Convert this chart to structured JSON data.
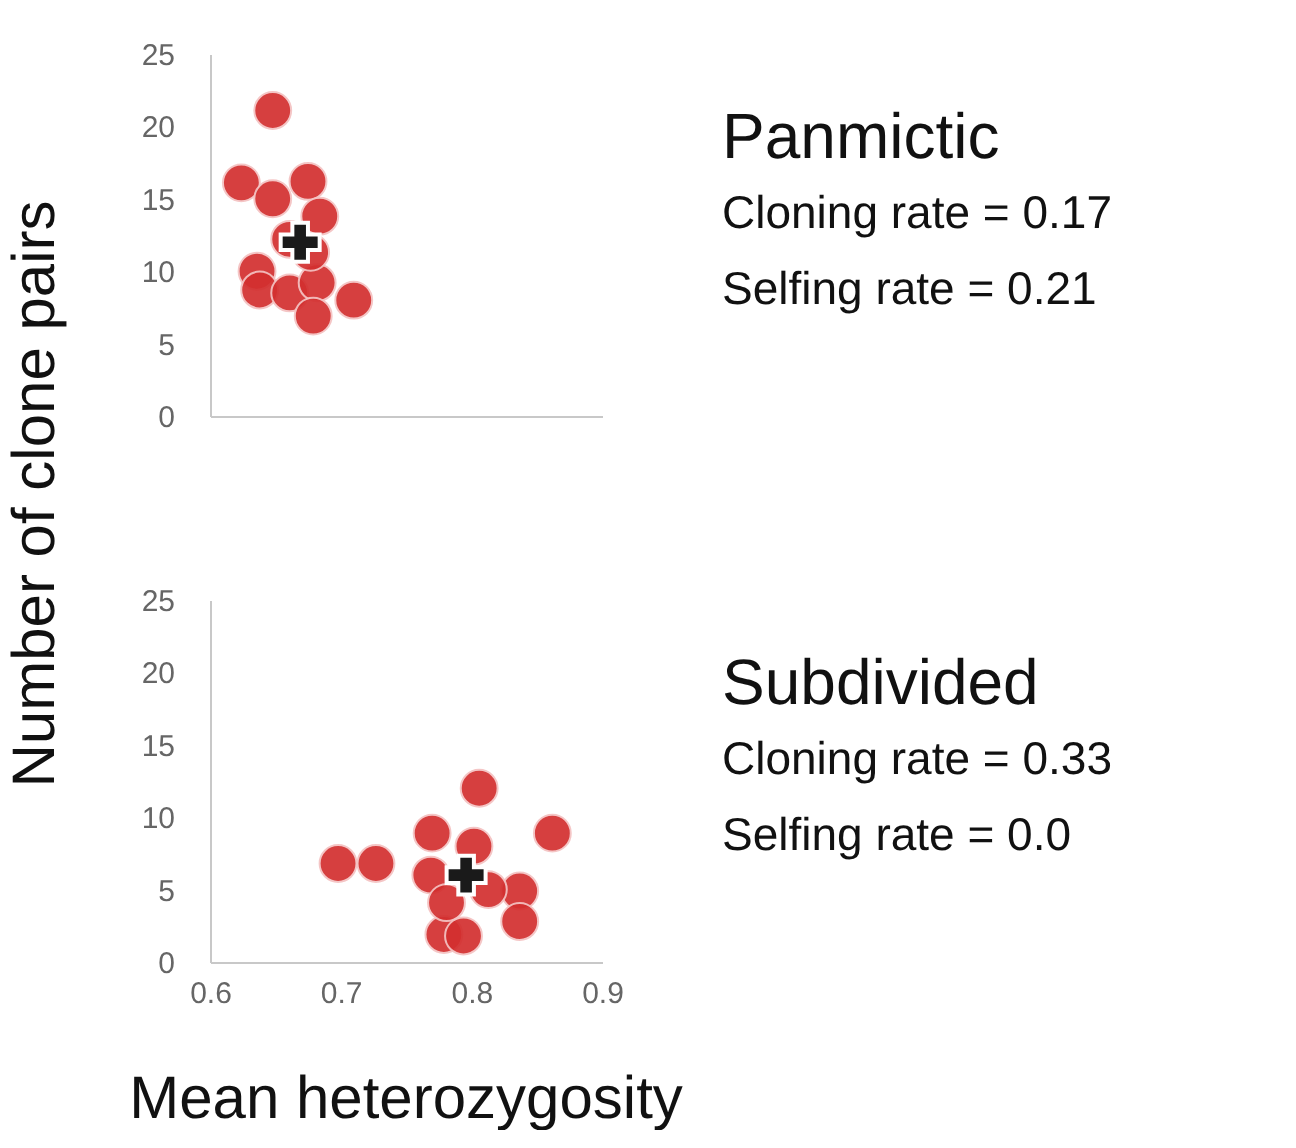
{
  "chart_data": [
    {
      "type": "scatter",
      "annotations": [
        "Panmictic",
        "Cloning rate = 0.17",
        "Selfing rate = 0.21"
      ],
      "ylabel": "Number of clone pairs",
      "xlim": [
        0.6,
        0.9
      ],
      "xticks": [
        0.6,
        0.7,
        0.8,
        0.9
      ],
      "ylim": [
        0,
        25
      ],
      "yticks": [
        0,
        5,
        10,
        15,
        20,
        25
      ],
      "tick_labels": "y",
      "grid": false,
      "marker": "circle",
      "series": [
        {
          "color": "#d32f2f",
          "x": [
            0.648,
            0.624,
            0.675,
            0.648,
            0.684,
            0.661,
            0.636,
            0.638,
            0.661,
            0.682,
            0.679,
            0.71,
            0.677
          ],
          "values": [
            21.1,
            16.1,
            16.2,
            15.0,
            13.8,
            12.2,
            10.0,
            8.7,
            8.5,
            9.2,
            6.9,
            8.0,
            11.3
          ]
        },
        {
          "color": "#1a1a1a",
          "marker": "cross",
          "x": [
            0.669
          ],
          "values": [
            12.0
          ]
        }
      ]
    },
    {
      "type": "scatter",
      "annotations": [
        "Subdivided",
        "Cloning rate = 0.33",
        "Selfing rate = 0.0"
      ],
      "xlabel": "Mean heterozygosity",
      "xlim": [
        0.6,
        0.9
      ],
      "xticks": [
        0.6,
        0.7,
        0.8,
        0.9
      ],
      "ylim": [
        0,
        25
      ],
      "yticks": [
        0,
        5,
        10,
        15,
        20,
        25
      ],
      "grid": false,
      "marker": "circle",
      "series": [
        {
          "color": "#d32f2f",
          "x": [
            0.698,
            0.727,
            0.806,
            0.862,
            0.77,
            0.802,
            0.769,
            0.837,
            0.837,
            0.779,
            0.794,
            0.781,
            0.813
          ],
          "values": [
            6.8,
            6.8,
            12.0,
            8.9,
            8.9,
            8.0,
            6.0,
            4.9,
            2.8,
            1.9,
            1.8,
            4.1,
            5.0
          ]
        },
        {
          "color": "#1a1a1a",
          "marker": "cross",
          "x": [
            0.796
          ],
          "values": [
            6.0
          ]
        }
      ]
    }
  ]
}
